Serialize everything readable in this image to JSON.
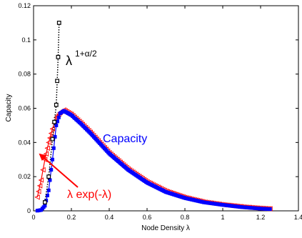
{
  "chart_data": {
    "type": "line",
    "xlabel": "Node Density λ",
    "ylabel": "Capacity",
    "xlim": [
      0,
      1.4
    ],
    "ylim": [
      0,
      0.12
    ],
    "x_ticks": [
      "0",
      "0.2",
      "0.4",
      "0.6",
      "0.8",
      "1",
      "1.2",
      "1.4"
    ],
    "y_ticks": [
      "0",
      "0.02",
      "0.04",
      "0.06",
      "0.08",
      "0.1",
      "0.12"
    ],
    "grid": false,
    "series": [
      {
        "name": "Capacity",
        "color": "#0000ff",
        "marker": "square-filled",
        "x": [
          0.02,
          0.04,
          0.06,
          0.08,
          0.1,
          0.12,
          0.14,
          0.16,
          0.2,
          0.25,
          0.3,
          0.35,
          0.4,
          0.5,
          0.6,
          0.7,
          0.8,
          0.9,
          1.0,
          1.1,
          1.2,
          1.25
        ],
        "y": [
          0.0001,
          0.0005,
          0.003,
          0.012,
          0.03,
          0.05,
          0.057,
          0.0585,
          0.056,
          0.051,
          0.0455,
          0.0395,
          0.0335,
          0.024,
          0.0165,
          0.011,
          0.0075,
          0.005,
          0.0035,
          0.0022,
          0.0013,
          0.001
        ]
      },
      {
        "name": "λ exp(-λ)",
        "color": "#ff0000",
        "marker": "triangle-open",
        "x": [
          0.02,
          0.04,
          0.06,
          0.08,
          0.1,
          0.12,
          0.14,
          0.16,
          0.2,
          0.25,
          0.3,
          0.35,
          0.4,
          0.5,
          0.6,
          0.7,
          0.8,
          0.9,
          1.0,
          1.1,
          1.2,
          1.25
        ],
        "y": [
          0.008,
          0.018,
          0.03,
          0.04,
          0.048,
          0.0545,
          0.0575,
          0.059,
          0.0565,
          0.0515,
          0.046,
          0.04,
          0.034,
          0.0245,
          0.017,
          0.0115,
          0.0078,
          0.0052,
          0.0036,
          0.0024,
          0.0015,
          0.0012
        ]
      },
      {
        "name": "λ^(1+α/2)",
        "color": "#000000",
        "marker": "square-open",
        "x": [
          0.06,
          0.08,
          0.1,
          0.11,
          0.12,
          0.125,
          0.13,
          0.135
        ],
        "y": [
          0.005,
          0.02,
          0.042,
          0.052,
          0.062,
          0.076,
          0.09,
          0.11
        ]
      }
    ],
    "annotations": {
      "capacity_label": "Capacity",
      "exp_label": "λ exp(-λ)",
      "power_base": "λ",
      "power_exp": "1+α/2"
    }
  }
}
